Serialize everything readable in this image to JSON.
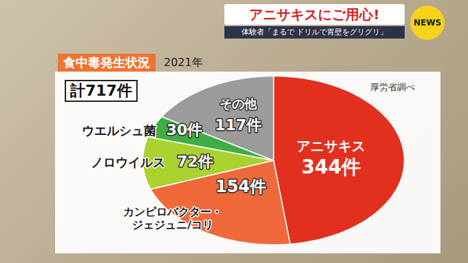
{
  "header": {
    "headline": "アニサキスにご用心!",
    "subheadline": "体験者「まるで ドリルで胃壁をグリグリ」",
    "badge": "NEWS"
  },
  "chart_data": {
    "type": "pie",
    "title": "食中毒発生状況",
    "subtitle": "2021年",
    "total_label": "計717件",
    "source": "厚労省調べ",
    "categories": [
      "アニサキス",
      "カンピロバクター・ジェジュニ/コリ",
      "ノロウイルス",
      "ウエルシュ菌",
      "その他"
    ],
    "values": [
      344,
      154,
      72,
      30,
      117
    ],
    "value_labels": [
      "344件",
      "154件",
      "72件",
      "30件",
      "117件"
    ],
    "colors": [
      "#e2301f",
      "#f0693a",
      "#a9d12f",
      "#3fae46",
      "#9b9b9b"
    ],
    "data_labels": true
  }
}
